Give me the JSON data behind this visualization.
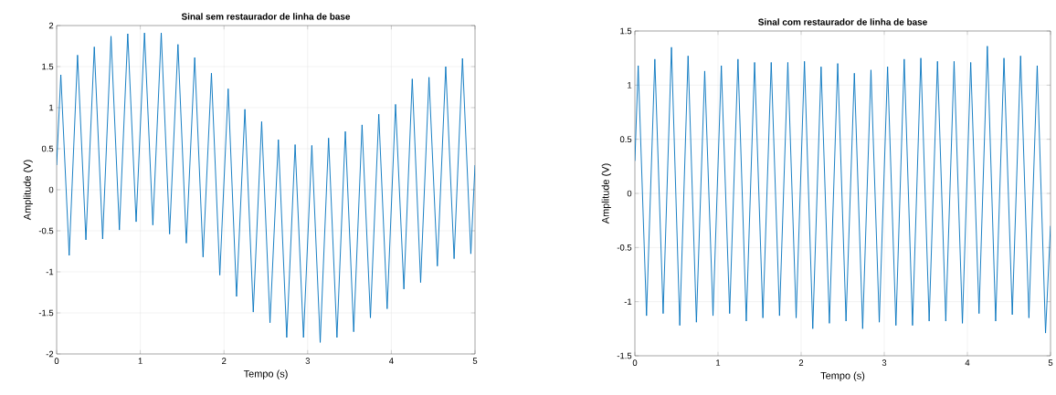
{
  "chart_data": [
    {
      "type": "line",
      "title": "Sinal sem restaurador de linha de base",
      "xlabel": "Tempo (s)",
      "ylabel": "Amplitude (V)",
      "x": [
        0,
        0.05,
        0.15,
        0.25,
        0.35,
        0.45,
        0.55,
        0.65,
        0.75,
        0.85,
        0.95,
        1.05,
        1.15,
        1.25,
        1.35,
        1.45,
        1.55,
        1.65,
        1.75,
        1.85,
        1.95,
        2.05,
        2.15,
        2.25,
        2.35,
        2.45,
        2.55,
        2.65,
        2.75,
        2.85,
        2.95,
        3.05,
        3.15,
        3.25,
        3.35,
        3.45,
        3.55,
        3.65,
        3.75,
        3.85,
        3.95,
        4.05,
        4.15,
        4.25,
        4.35,
        4.45,
        4.55,
        4.65,
        4.75,
        4.85,
        4.95,
        5
      ],
      "series": [
        {
          "color": "#0072bd",
          "values": [
            0.3,
            1.4,
            -0.8,
            1.64,
            -0.61,
            1.74,
            -0.6,
            1.87,
            -0.49,
            1.9,
            -0.39,
            1.91,
            -0.43,
            1.91,
            -0.54,
            1.77,
            -0.65,
            1.61,
            -0.82,
            1.42,
            -1.04,
            1.23,
            -1.3,
            0.98,
            -1.49,
            0.83,
            -1.62,
            0.61,
            -1.8,
            0.55,
            -1.8,
            0.54,
            -1.86,
            0.63,
            -1.8,
            0.71,
            -1.73,
            0.79,
            -1.56,
            0.92,
            -1.45,
            1.04,
            -1.21,
            1.35,
            -1.13,
            1.37,
            -0.93,
            1.5,
            -0.84,
            1.6,
            -0.78,
            0.3
          ]
        }
      ],
      "xlim": [
        0,
        5
      ],
      "ylim": [
        -2,
        2
      ],
      "xticks": [
        0,
        1,
        2,
        3,
        4,
        5
      ],
      "yticks": [
        -2,
        -1.5,
        -1,
        -0.5,
        0,
        0.5,
        1,
        1.5,
        2
      ],
      "grid": true
    },
    {
      "type": "line",
      "title": "Sinal com restaurador de linha de base",
      "xlabel": "Tempo (s)",
      "ylabel": "Amplitude (V)",
      "x": [
        0,
        0.04,
        0.14,
        0.24,
        0.34,
        0.44,
        0.54,
        0.64,
        0.74,
        0.84,
        0.94,
        1.04,
        1.14,
        1.24,
        1.34,
        1.44,
        1.54,
        1.64,
        1.74,
        1.84,
        1.94,
        2.04,
        2.14,
        2.24,
        2.34,
        2.44,
        2.54,
        2.64,
        2.74,
        2.84,
        2.94,
        3.04,
        3.14,
        3.24,
        3.34,
        3.44,
        3.54,
        3.64,
        3.74,
        3.84,
        3.94,
        4.04,
        4.14,
        4.24,
        4.34,
        4.44,
        4.54,
        4.64,
        4.74,
        4.84,
        4.94,
        5
      ],
      "series": [
        {
          "color": "#0072bd",
          "values": [
            0.3,
            1.18,
            -1.13,
            1.24,
            -1.11,
            1.35,
            -1.22,
            1.27,
            -1.19,
            1.13,
            -1.13,
            1.18,
            -1.11,
            1.24,
            -1.18,
            1.21,
            -1.15,
            1.21,
            -1.13,
            1.21,
            -1.15,
            1.22,
            -1.25,
            1.17,
            -1.2,
            1.2,
            -1.18,
            1.11,
            -1.25,
            1.14,
            -1.19,
            1.17,
            -1.22,
            1.24,
            -1.22,
            1.25,
            -1.18,
            1.22,
            -1.18,
            1.22,
            -1.2,
            1.21,
            -1.11,
            1.36,
            -1.18,
            1.25,
            -1.12,
            1.27,
            -1.15,
            1.18,
            -1.29,
            -0.3
          ]
        }
      ],
      "xlim": [
        0,
        5
      ],
      "ylim": [
        -1.5,
        1.5
      ],
      "xticks": [
        0,
        1,
        2,
        3,
        4,
        5
      ],
      "yticks": [
        -1.5,
        -1,
        -0.5,
        0,
        0.5,
        1,
        1.5
      ],
      "grid": true
    }
  ]
}
